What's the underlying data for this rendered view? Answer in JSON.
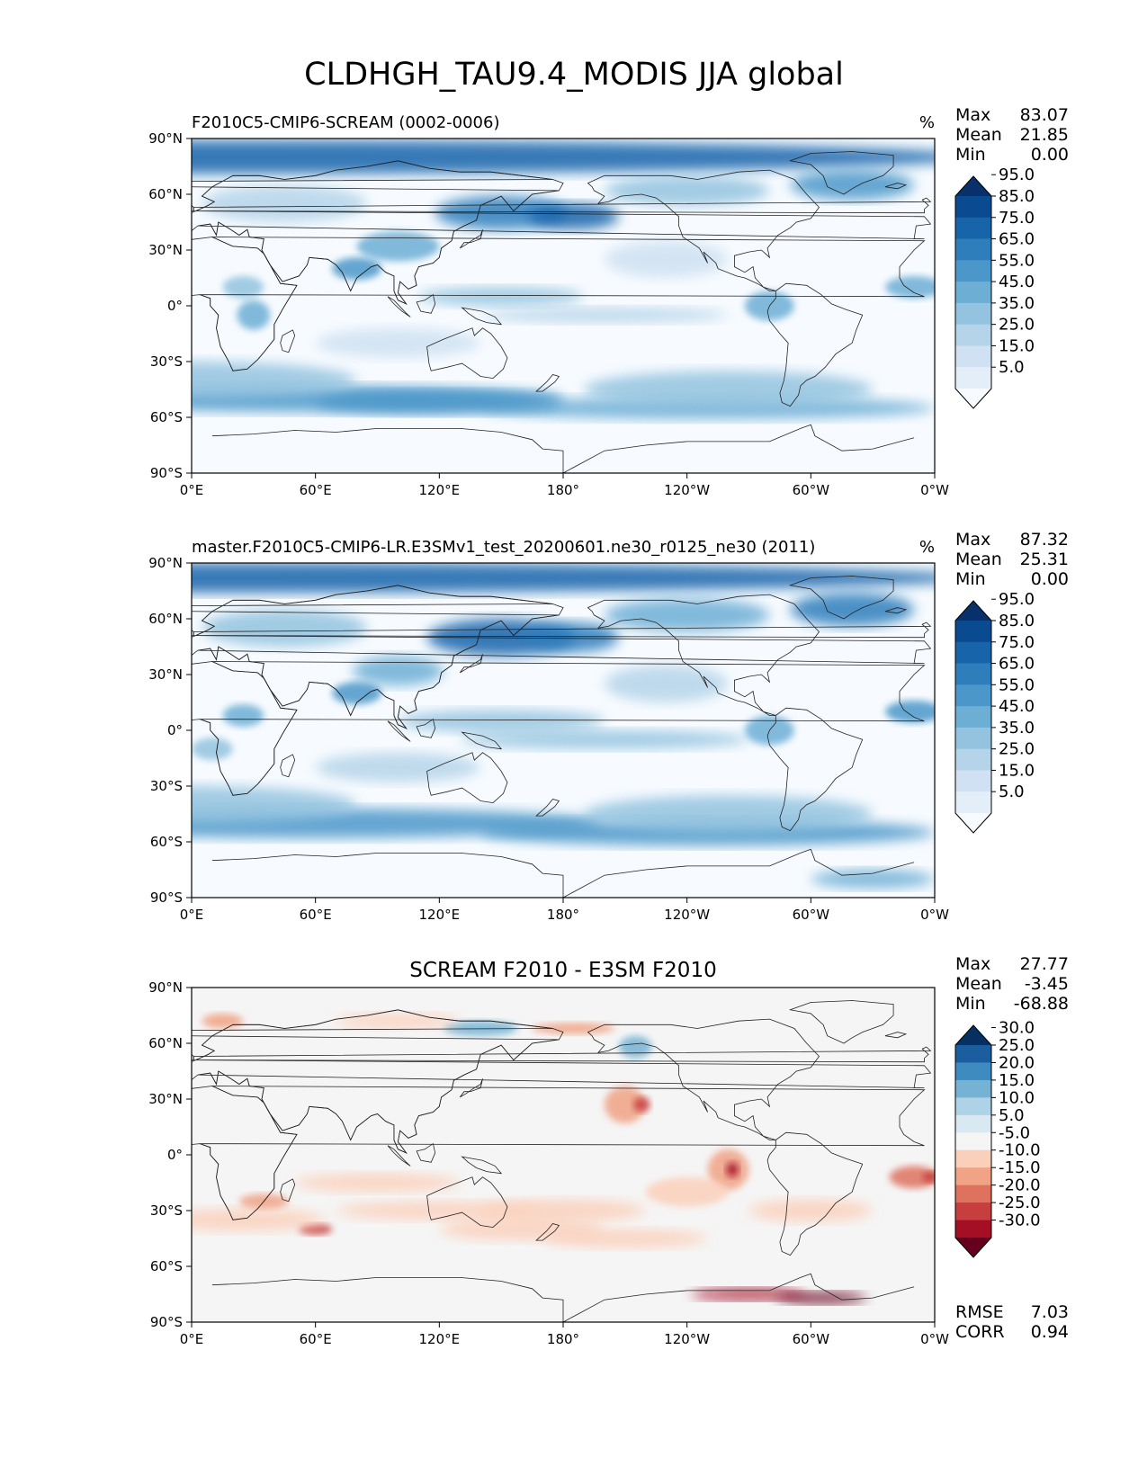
{
  "figure_title": "CLDHGH_TAU9.4_MODIS JJA global",
  "chart_data": [
    {
      "type": "heatmap",
      "title": "F2010C5-CMIP6-SCREAM (0002-0006)",
      "units": "%",
      "stats": [
        {
          "label": "Max",
          "value": "83.07"
        },
        {
          "label": "Mean",
          "value": "21.85"
        },
        {
          "label": "Min",
          "value": "0.00"
        }
      ],
      "x_ticks": [
        "0°E",
        "60°E",
        "120°E",
        "180°",
        "120°W",
        "60°W",
        "0°W"
      ],
      "y_ticks": [
        "90°N",
        "60°N",
        "30°N",
        "0°",
        "30°S",
        "60°S",
        "90°S"
      ],
      "xlim": [
        0,
        360
      ],
      "ylim": [
        -90,
        90
      ],
      "colorbar": {
        "levels": [
          0,
          5,
          15,
          25,
          35,
          45,
          55,
          65,
          75,
          85,
          95,
          100
        ],
        "tick_labels": [
          "5.0",
          "15.0",
          "25.0",
          "35.0",
          "45.0",
          "55.0",
          "65.0",
          "75.0",
          "85.0",
          "95.0"
        ],
        "colors": [
          "#f7fbff",
          "#e3eef9",
          "#cfe1f2",
          "#b5d4e9",
          "#93c3df",
          "#6daed5",
          "#4b97c9",
          "#2f7ebc",
          "#1864aa",
          "#0a4a90",
          "#08306b"
        ],
        "extend": "both"
      }
    },
    {
      "type": "heatmap",
      "title": "master.F2010C5-CMIP6-LR.E3SMv1_test_20200601.ne30_r0125_ne30 (2011)",
      "units": "%",
      "stats": [
        {
          "label": "Max",
          "value": "87.32"
        },
        {
          "label": "Mean",
          "value": "25.31"
        },
        {
          "label": "Min",
          "value": "0.00"
        }
      ],
      "x_ticks": [
        "0°E",
        "60°E",
        "120°E",
        "180°",
        "120°W",
        "60°W",
        "0°W"
      ],
      "y_ticks": [
        "90°N",
        "60°N",
        "30°N",
        "0°",
        "30°S",
        "60°S",
        "90°S"
      ],
      "xlim": [
        0,
        360
      ],
      "ylim": [
        -90,
        90
      ],
      "colorbar": {
        "levels": [
          0,
          5,
          15,
          25,
          35,
          45,
          55,
          65,
          75,
          85,
          95,
          100
        ],
        "tick_labels": [
          "5.0",
          "15.0",
          "25.0",
          "35.0",
          "45.0",
          "55.0",
          "65.0",
          "75.0",
          "85.0",
          "95.0"
        ],
        "colors": [
          "#f7fbff",
          "#e3eef9",
          "#cfe1f2",
          "#b5d4e9",
          "#93c3df",
          "#6daed5",
          "#4b97c9",
          "#2f7ebc",
          "#1864aa",
          "#0a4a90",
          "#08306b"
        ],
        "extend": "both"
      }
    },
    {
      "type": "heatmap",
      "title": "SCREAM F2010 - E3SM F2010",
      "units": "",
      "stats": [
        {
          "label": "Max",
          "value": "27.77"
        },
        {
          "label": "Mean",
          "value": "-3.45"
        },
        {
          "label": "Min",
          "value": "-68.88"
        }
      ],
      "bottom_stats": [
        {
          "label": "RMSE",
          "value": "7.03"
        },
        {
          "label": "CORR",
          "value": "0.94"
        }
      ],
      "x_ticks": [
        "0°E",
        "60°E",
        "120°E",
        "180°",
        "120°W",
        "60°W",
        "0°W"
      ],
      "y_ticks": [
        "90°N",
        "60°N",
        "30°N",
        "0°",
        "30°S",
        "60°S",
        "90°S"
      ],
      "xlim": [
        0,
        360
      ],
      "ylim": [
        -90,
        90
      ],
      "colorbar": {
        "levels": [
          -35,
          -30,
          -25,
          -20,
          -15,
          -10,
          -5,
          5,
          10,
          15,
          20,
          25,
          30,
          35
        ],
        "tick_labels": [
          "-30.0",
          "-25.0",
          "-20.0",
          "-15.0",
          "-10.0",
          "-5.0",
          "5.0",
          "10.0",
          "15.0",
          "20.0",
          "25.0",
          "30.0"
        ],
        "colors": [
          "#67001f",
          "#a50f26",
          "#c73e3e",
          "#de725e",
          "#f0a385",
          "#fbd0bb",
          "#f5f5f5",
          "#d8e9f2",
          "#aed2e6",
          "#75b2d4",
          "#3e8bbf",
          "#1c5d9f",
          "#053061"
        ],
        "extend": "both"
      }
    }
  ]
}
